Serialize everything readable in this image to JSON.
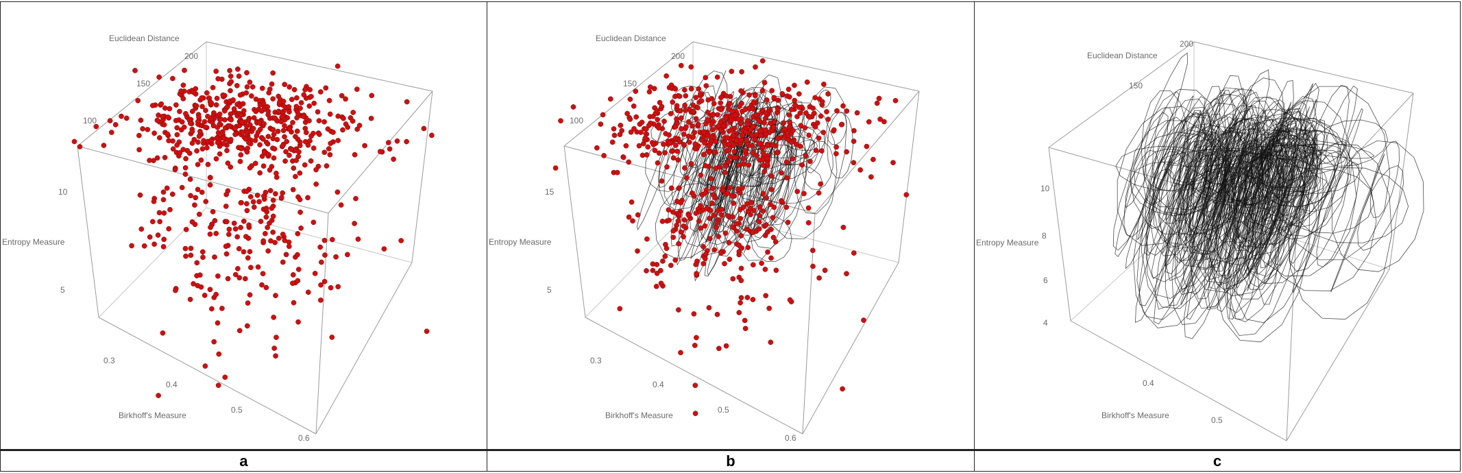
{
  "chart_data": [
    {
      "type": "scatter",
      "title": "",
      "xlabel": "Birkhoff's Measure",
      "ylabel": "Entropy Measure",
      "zlabel": "Euclidean Distance",
      "x_ticks": [
        "0.3",
        "0.4",
        "0.5",
        "0.6"
      ],
      "y_ticks": [
        "5",
        "10"
      ],
      "z_ticks": [
        "100",
        "150",
        "200"
      ],
      "xlim": [
        0.27,
        0.62
      ],
      "ylim": [
        3,
        13
      ],
      "zlim": [
        80,
        210
      ],
      "grid": false,
      "legend": "none",
      "points_color": "#cc1111",
      "show_points": true,
      "show_curves": false,
      "point_count": 700,
      "cluster_center": {
        "birkhoff": 0.44,
        "entropy": 11.5,
        "euclidean": 120
      },
      "caption": "a"
    },
    {
      "type": "scatter",
      "title": "",
      "xlabel": "Birkhoff's Measure",
      "ylabel": "Entropy Measure",
      "zlabel": "Euclidean Distance",
      "x_ticks": [
        "0.3",
        "0.4",
        "0.5",
        "0.6"
      ],
      "y_ticks": [
        "5",
        "15"
      ],
      "z_ticks": [
        "100",
        "150",
        "200"
      ],
      "xlim": [
        0.27,
        0.62
      ],
      "ylim": [
        3,
        17
      ],
      "zlim": [
        80,
        210
      ],
      "grid": false,
      "legend": "none",
      "points_color": "#cc1111",
      "curve_color": "#111111",
      "show_points": true,
      "show_curves": true,
      "point_count": 700,
      "curve_count": 110,
      "cluster_center": {
        "birkhoff": 0.44,
        "entropy": 11.5,
        "euclidean": 120
      },
      "caption": "b"
    },
    {
      "type": "line",
      "title": "",
      "xlabel": "Birkhoff's Measure",
      "ylabel": "Entropy Measure",
      "zlabel": "Euclidean Distance",
      "x_ticks": [
        "0.4",
        "0.5"
      ],
      "y_ticks": [
        "4",
        "6",
        "8",
        "10"
      ],
      "z_ticks": [
        "150",
        "200"
      ],
      "xlim": [
        0.3,
        0.56
      ],
      "ylim": [
        3,
        12
      ],
      "zlim": [
        100,
        210
      ],
      "grid": false,
      "legend": "none",
      "curve_color": "#111111",
      "show_points": false,
      "show_curves": true,
      "curve_count": 260,
      "cluster_center": {
        "birkhoff": 0.44,
        "entropy": 9.5,
        "euclidean": 160
      },
      "caption": "c"
    }
  ]
}
